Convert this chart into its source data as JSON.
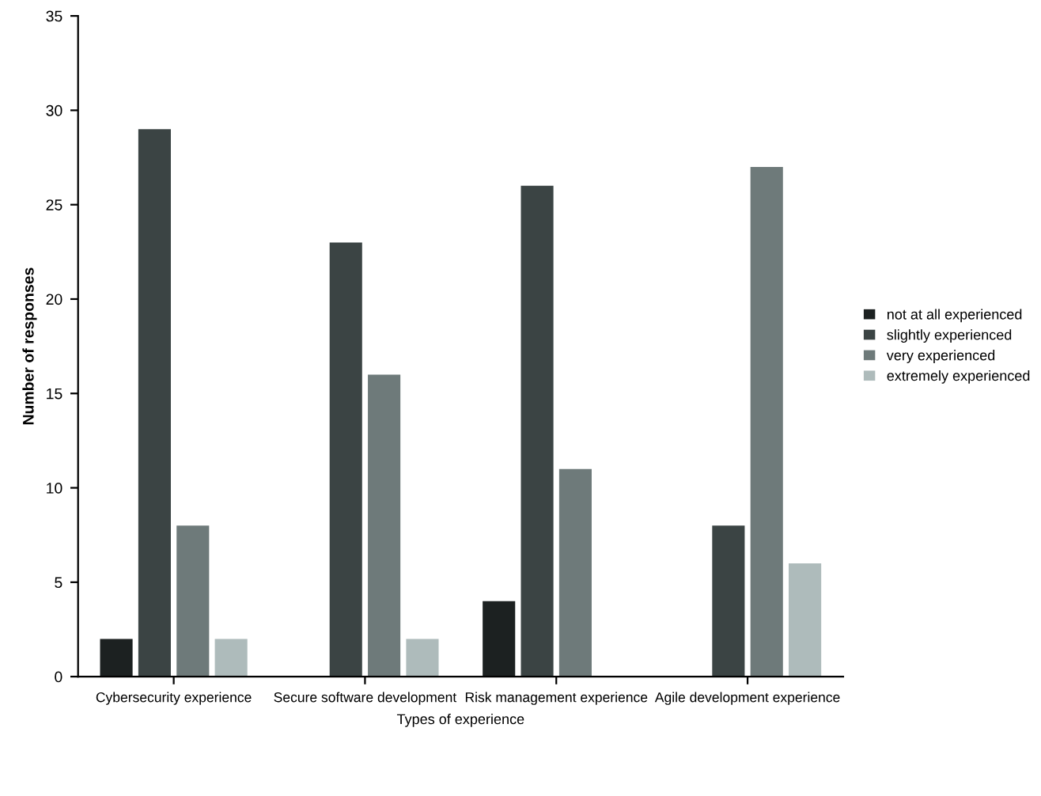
{
  "chart_data": {
    "type": "bar",
    "xlabel": "Types of experience",
    "ylabel": "Number of responses",
    "categories": [
      "Cybersecurity experience",
      "Secure software development",
      "Risk management experience",
      "Agile development experience"
    ],
    "series": [
      {
        "name": "not at all experienced",
        "color": "#1c2121",
        "values": [
          2,
          0,
          4,
          0
        ]
      },
      {
        "name": "slightly experienced",
        "color": "#3b4444",
        "values": [
          29,
          23,
          26,
          8
        ]
      },
      {
        "name": "very experienced",
        "color": "#6e7a7a",
        "values": [
          8,
          16,
          11,
          27
        ]
      },
      {
        "name": "extremely experienced",
        "color": "#aebbbb",
        "values": [
          2,
          2,
          0,
          6
        ]
      }
    ],
    "ylim": [
      0,
      35
    ],
    "yticks": [
      0,
      5,
      10,
      15,
      20,
      25,
      30,
      35
    ],
    "grid": false,
    "legend": "right"
  }
}
